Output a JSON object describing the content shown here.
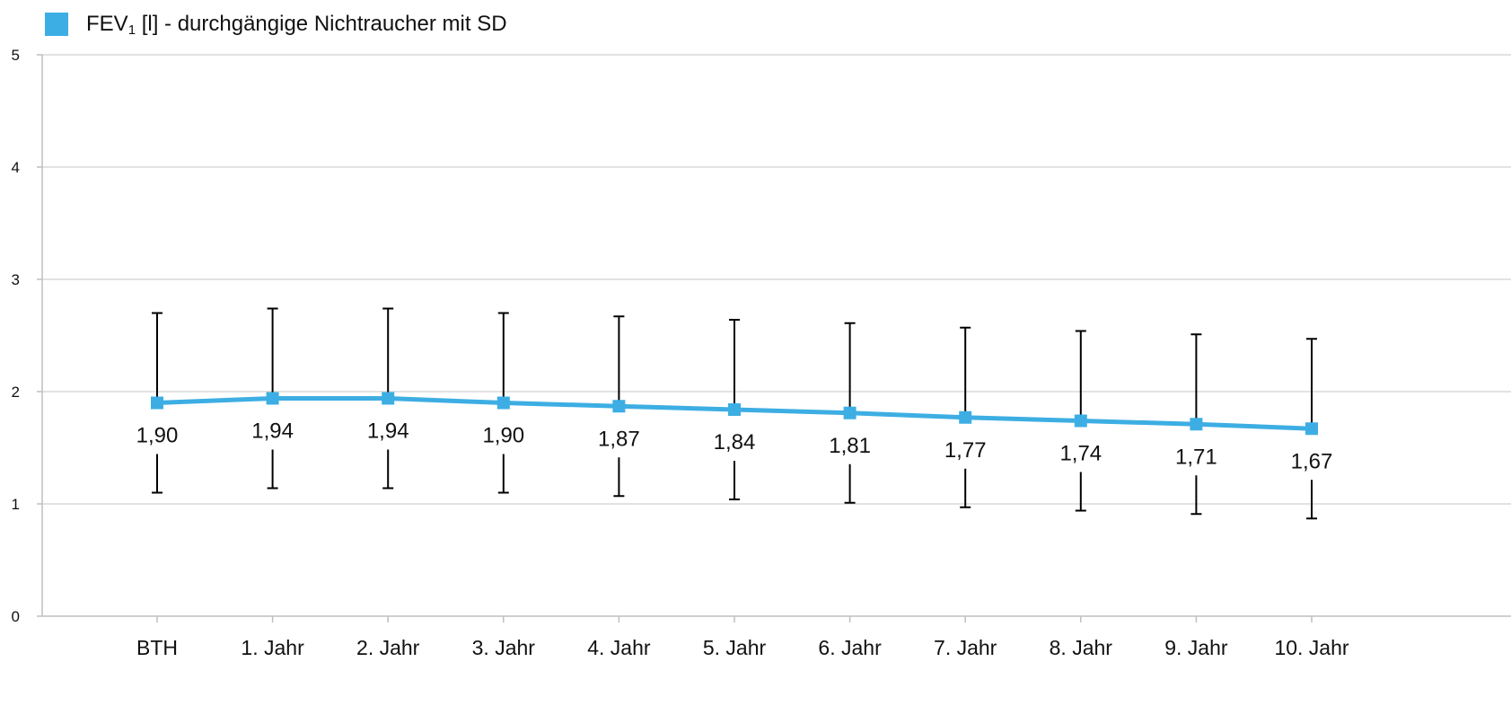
{
  "legend": {
    "label_pre": "FEV",
    "label_sub": "1",
    "label_post": " [l] - durchgängige Nichtraucher mit SD"
  },
  "colors": {
    "series": "#3daee3",
    "grid": "#d9d9d9",
    "error_bar": "#000000"
  },
  "chart_data": {
    "type": "line",
    "categories": [
      "BTH",
      "1. Jahr",
      "2. Jahr",
      "3. Jahr",
      "4. Jahr",
      "5. Jahr",
      "6. Jahr",
      "7. Jahr",
      "8. Jahr",
      "9. Jahr",
      "10. Jahr"
    ],
    "series": [
      {
        "name": "FEV1 [l] - durchgängige Nichtraucher mit SD",
        "values": [
          1.9,
          1.94,
          1.94,
          1.9,
          1.87,
          1.84,
          1.81,
          1.77,
          1.74,
          1.71,
          1.67
        ],
        "labels": [
          "1,90",
          "1,94",
          "1,94",
          "1,90",
          "1,87",
          "1,84",
          "1,81",
          "1,77",
          "1,74",
          "1,71",
          "1,67"
        ],
        "sd": [
          0.8,
          0.8,
          0.8,
          0.8,
          0.8,
          0.8,
          0.8,
          0.8,
          0.8,
          0.8,
          0.8
        ],
        "marker": "square"
      }
    ],
    "ylim": [
      0,
      5
    ],
    "yticks": [
      0,
      1,
      2,
      3,
      4,
      5
    ],
    "ytick_labels": [
      "0",
      "1",
      "2",
      "3",
      "4",
      "5"
    ],
    "grid": true,
    "legend_position": "top-left",
    "title": "",
    "xlabel": "",
    "ylabel": ""
  }
}
